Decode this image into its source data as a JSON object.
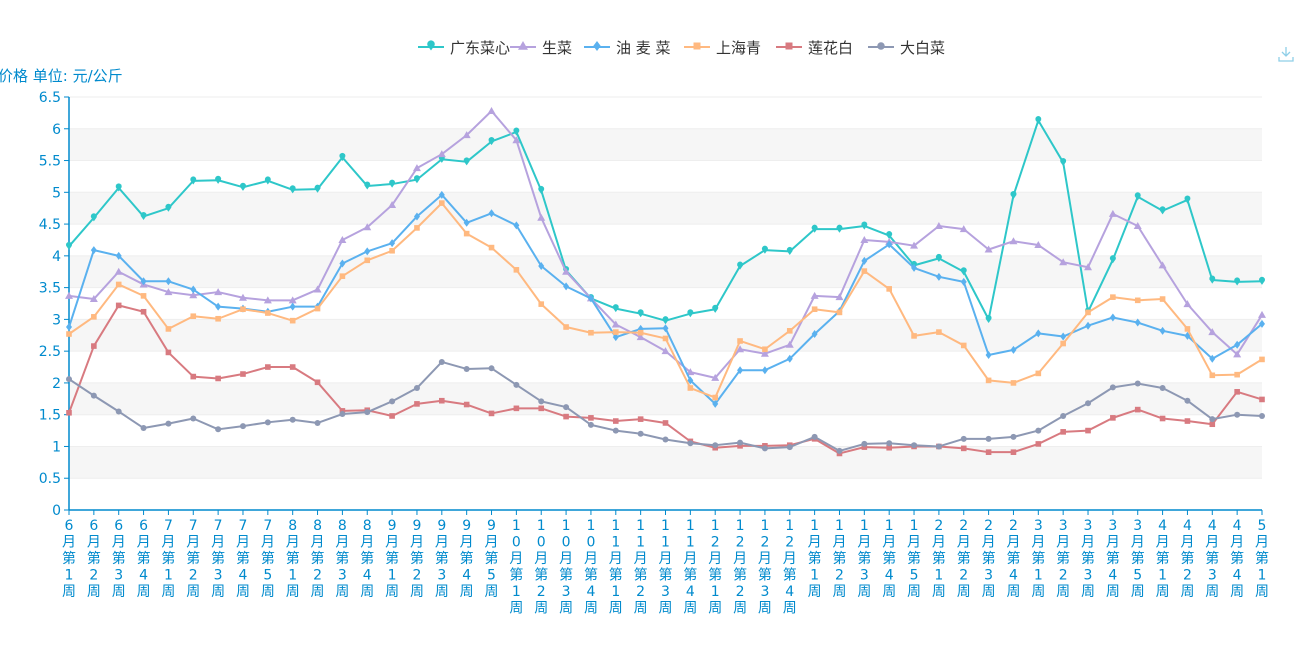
{
  "chart_data": {
    "type": "line",
    "ylabel": "价格 单位: 元/公斤",
    "ylim": [
      0,
      6.5
    ],
    "yticks": [
      "0",
      "0.5",
      "1",
      "1.5",
      "2",
      "2.5",
      "3",
      "3.5",
      "4",
      "4.5",
      "5",
      "5.5",
      "6",
      "6.5"
    ],
    "grid": "horizontal bands",
    "legend": "top-center",
    "categories": [
      "6月第1周",
      "6月第2周",
      "6月第3周",
      "6月第4周",
      "7月第1周",
      "7月第2周",
      "7月第3周",
      "7月第4周",
      "7月第5周",
      "8月第1周",
      "8月第2周",
      "8月第3周",
      "8月第4周",
      "9月第1周",
      "9月第2周",
      "9月第3周",
      "9月第4周",
      "9月第5周",
      "10月第1周",
      "10月第2周",
      "10月第3周",
      "10月第4周",
      "11月第1周",
      "11月第2周",
      "11月第3周",
      "11月第4周",
      "12月第1周",
      "12月第2周",
      "12月第3周",
      "12月第4周",
      "1月第1周",
      "1月第2周",
      "1月第3周",
      "1月第4周",
      "1月第5周",
      "2月第1周",
      "2月第2周",
      "2月第3周",
      "2月第4周",
      "3月第1周",
      "3月第2周",
      "3月第3周",
      "3月第4周",
      "3月第5周",
      "4月第1周",
      "4月第2周",
      "4月第3周",
      "4月第4周",
      "5月第1周"
    ],
    "series": [
      {
        "name": "广东菜心",
        "color": "#2ec7c9",
        "symbol": "pin",
        "values": [
          4.15,
          4.6,
          5.07,
          4.62,
          4.75,
          5.18,
          5.19,
          5.08,
          5.18,
          5.04,
          5.05,
          5.55,
          5.1,
          5.13,
          5.2,
          5.52,
          5.48,
          5.8,
          5.95,
          5.03,
          3.77,
          3.33,
          3.17,
          3.09,
          2.98,
          3.09,
          3.16,
          3.84,
          4.09,
          4.07,
          4.42,
          4.42,
          4.47,
          4.32,
          3.85,
          3.96,
          3.75,
          3.0,
          4.95,
          6.13,
          5.47,
          3.12,
          3.94,
          4.93,
          4.71,
          4.88,
          3.62,
          3.59,
          3.6
        ]
      },
      {
        "name": "生菜",
        "color": "#b6a2de",
        "symbol": "triangle",
        "values": [
          3.37,
          3.32,
          3.75,
          3.55,
          3.43,
          3.38,
          3.43,
          3.34,
          3.3,
          3.3,
          3.47,
          4.25,
          4.45,
          4.8,
          5.38,
          5.6,
          5.9,
          6.28,
          5.82,
          4.6,
          3.75,
          3.33,
          2.92,
          2.72,
          2.5,
          2.17,
          2.08,
          2.53,
          2.46,
          2.6,
          3.37,
          3.35,
          4.25,
          4.22,
          4.16,
          4.47,
          4.42,
          4.1,
          4.23,
          4.17,
          3.9,
          3.82,
          4.66,
          4.47,
          3.85,
          3.24,
          2.8,
          2.45,
          3.07
        ]
      },
      {
        "name": "油 麦 菜",
        "color": "#5ab1ef",
        "symbol": "diamond",
        "values": [
          2.88,
          4.09,
          4.0,
          3.6,
          3.6,
          3.47,
          3.2,
          3.17,
          3.12,
          3.2,
          3.2,
          3.88,
          4.07,
          4.2,
          4.62,
          4.96,
          4.52,
          4.67,
          4.48,
          3.84,
          3.52,
          3.33,
          2.72,
          2.85,
          2.86,
          2.04,
          1.67,
          2.2,
          2.2,
          2.38,
          2.77,
          3.13,
          3.92,
          4.18,
          3.81,
          3.67,
          3.59,
          2.44,
          2.52,
          2.78,
          2.73,
          2.9,
          3.03,
          2.95,
          2.82,
          2.74,
          2.38,
          2.6,
          2.93
        ]
      },
      {
        "name": "上海青",
        "color": "#ffb980",
        "symbol": "square",
        "values": [
          2.77,
          3.04,
          3.55,
          3.37,
          2.85,
          3.05,
          3.01,
          3.16,
          3.1,
          2.98,
          3.17,
          3.68,
          3.93,
          4.08,
          4.44,
          4.83,
          4.35,
          4.13,
          3.78,
          3.24,
          2.88,
          2.79,
          2.8,
          2.79,
          2.7,
          1.92,
          1.77,
          2.66,
          2.53,
          2.82,
          3.16,
          3.11,
          3.76,
          3.48,
          2.74,
          2.8,
          2.59,
          2.04,
          2.0,
          2.15,
          2.62,
          3.11,
          3.35,
          3.3,
          3.32,
          2.85,
          2.12,
          2.13,
          2.37
        ]
      },
      {
        "name": "莲花白",
        "color": "#d87a80",
        "symbol": "square",
        "values": [
          1.53,
          2.58,
          3.22,
          3.12,
          2.48,
          2.1,
          2.07,
          2.14,
          2.25,
          2.25,
          2.01,
          1.56,
          1.57,
          1.48,
          1.67,
          1.72,
          1.66,
          1.52,
          1.6,
          1.6,
          1.47,
          1.45,
          1.4,
          1.43,
          1.37,
          1.08,
          0.98,
          1.01,
          1.01,
          1.02,
          1.12,
          0.89,
          0.99,
          0.98,
          1.0,
          1.0,
          0.97,
          0.91,
          0.91,
          1.04,
          1.23,
          1.25,
          1.45,
          1.58,
          1.44,
          1.4,
          1.35,
          1.86,
          1.74
        ]
      },
      {
        "name": "大白菜",
        "color": "#8d98b3",
        "symbol": "circle",
        "values": [
          2.06,
          1.8,
          1.55,
          1.29,
          1.36,
          1.44,
          1.27,
          1.32,
          1.38,
          1.42,
          1.37,
          1.51,
          1.54,
          1.71,
          1.92,
          2.33,
          2.22,
          2.23,
          1.97,
          1.71,
          1.62,
          1.34,
          1.25,
          1.2,
          1.11,
          1.05,
          1.02,
          1.06,
          0.97,
          0.99,
          1.15,
          0.93,
          1.04,
          1.05,
          1.02,
          1.0,
          1.12,
          1.12,
          1.15,
          1.25,
          1.48,
          1.68,
          1.93,
          1.99,
          1.92,
          1.72,
          1.43,
          1.5,
          1.48
        ]
      }
    ]
  },
  "toolbar": {
    "download_icon": "download-icon"
  }
}
